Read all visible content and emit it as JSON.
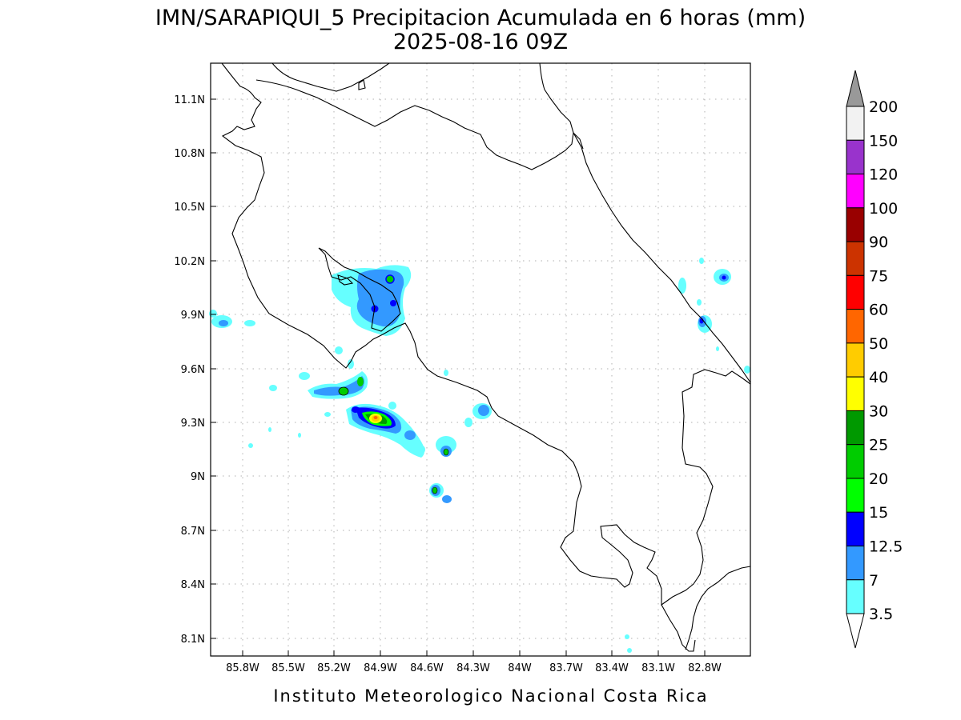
{
  "title": {
    "line1": "IMN/SARAPIQUI_5 Precipitacion Acumulada en 6 horas (mm)",
    "line2": "2025-08-16 09Z"
  },
  "footer": "Instituto Meteorologico Nacional Costa Rica",
  "map": {
    "region": "Costa Rica",
    "lon_range": [
      -86.0,
      -82.55
    ],
    "lat_range": [
      8.0,
      11.3
    ],
    "grid": true,
    "lat_ticks": [
      "11.1N",
      "10.8N",
      "10.5N",
      "10.2N",
      "9.9N",
      "9.6N",
      "9.3N",
      "9N",
      "8.7N",
      "8.4N",
      "8.1N"
    ],
    "lon_ticks": [
      "85.8W",
      "85.5W",
      "85.2W",
      "84.9W",
      "84.6W",
      "84.3W",
      "84W",
      "83.7W",
      "83.4W",
      "83.1W",
      "82.8W"
    ]
  },
  "colorbar": {
    "levels": [
      "200",
      "150",
      "120",
      "100",
      "90",
      "75",
      "60",
      "50",
      "40",
      "30",
      "25",
      "20",
      "15",
      "12.5",
      "7",
      "3.5"
    ],
    "colors": [
      "#f2f2f2",
      "#9933cc",
      "#ff00ff",
      "#990000",
      "#cc3300",
      "#ff0000",
      "#ff6600",
      "#ffcc00",
      "#ffff00",
      "#009900",
      "#00cc00",
      "#00ff00",
      "#0000ff",
      "#3399ff",
      "#66ffff"
    ],
    "top_arrow_color": "#999999",
    "bottom_arrow_color": "#ffffff"
  },
  "palette": {
    "c3_5": "#66ffff",
    "c7": "#3399ff",
    "c12_5": "#0000ff",
    "c15": "#00ff00",
    "c20": "#00cc00",
    "c25": "#009900",
    "c30": "#ffff00",
    "c40": "#ffcc00",
    "c50": "#ff6600"
  }
}
